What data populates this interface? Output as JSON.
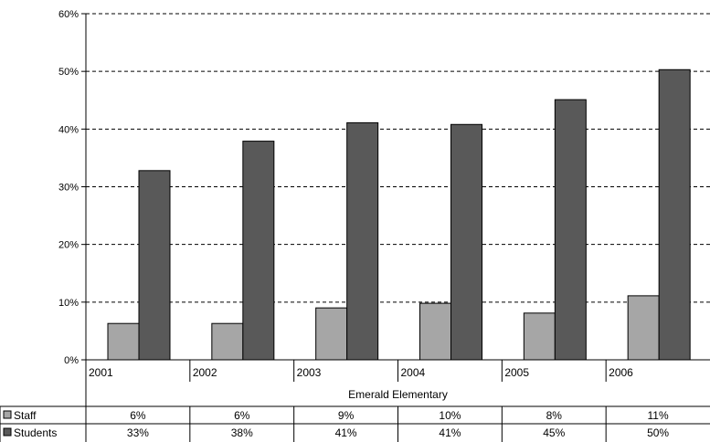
{
  "chart_data": {
    "type": "bar",
    "group_label": "Emerald Elementary",
    "categories": [
      "2001",
      "2002",
      "2003",
      "2004",
      "2005",
      "2006"
    ],
    "series": [
      {
        "name": "Staff",
        "color": "#a6a6a6",
        "values": [
          6.3,
          6.3,
          9.0,
          9.8,
          8.1,
          11.1
        ],
        "labels": [
          "6%",
          "6%",
          "9%",
          "10%",
          "8%",
          "11%"
        ]
      },
      {
        "name": "Students",
        "color": "#595959",
        "values": [
          32.8,
          37.9,
          41.1,
          40.8,
          45.1,
          50.3
        ],
        "labels": [
          "33%",
          "38%",
          "41%",
          "41%",
          "45%",
          "50%"
        ]
      }
    ],
    "ylim": [
      0,
      60
    ],
    "yticks": [
      0,
      10,
      20,
      30,
      40,
      50,
      60
    ],
    "ytick_labels": [
      "0%",
      "10%",
      "20%",
      "30%",
      "40%",
      "50%",
      "60%"
    ],
    "grid": true,
    "legend": "data-table-left"
  }
}
